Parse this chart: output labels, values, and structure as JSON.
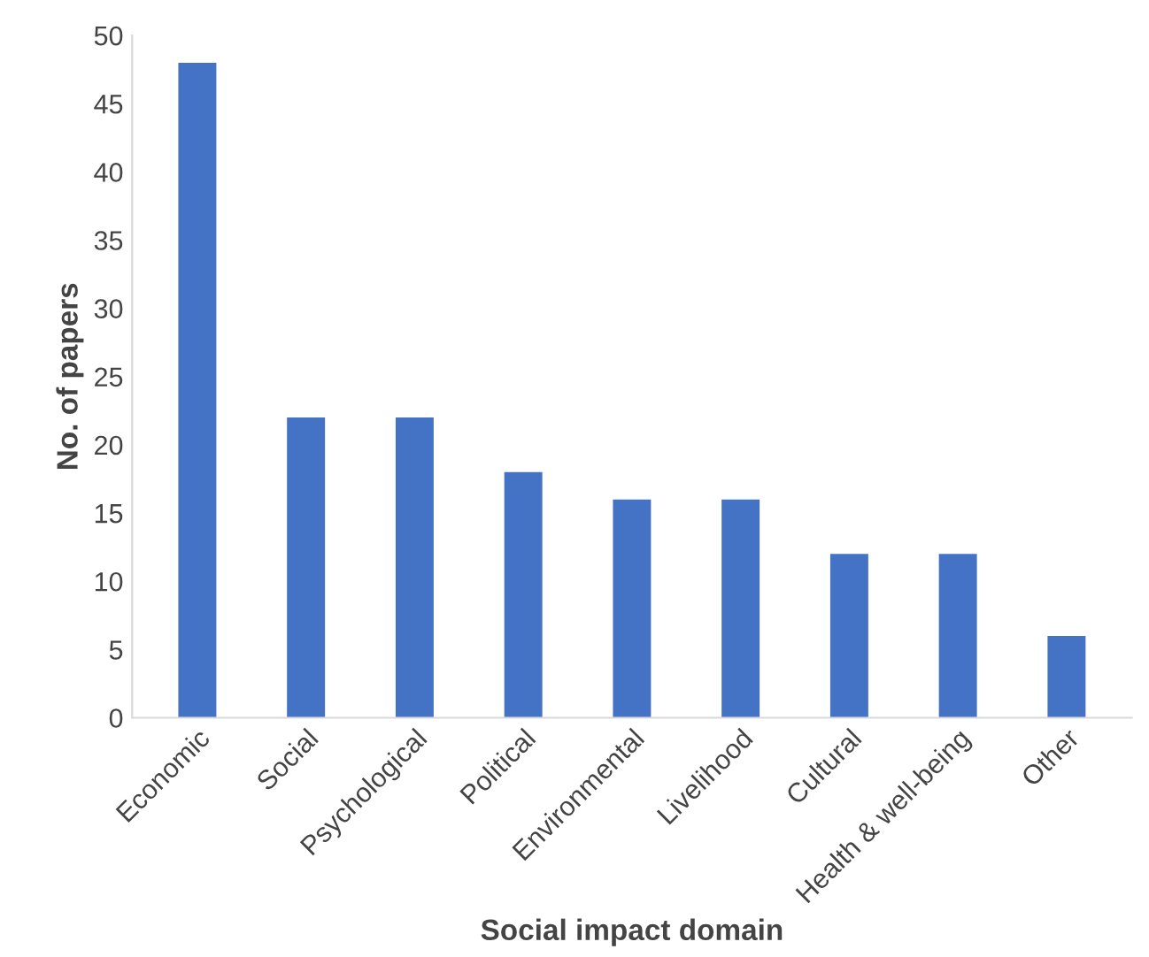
{
  "chart_data": {
    "type": "bar",
    "xlabel": "Social impact domain",
    "ylabel": "No. of papers",
    "categories": [
      "Economic",
      "Social",
      "Psychological",
      "Political",
      "Environmental",
      "Livelihood",
      "Cultural",
      "Health & well-being",
      "Other"
    ],
    "values": [
      48,
      22,
      22,
      18,
      16,
      16,
      12,
      12,
      6
    ],
    "color": "#4472c4",
    "ylim": [
      0,
      50
    ],
    "yticks": [
      0,
      5,
      10,
      15,
      20,
      25,
      30,
      35,
      40,
      45,
      50
    ],
    "grid": false,
    "legend": false
  }
}
